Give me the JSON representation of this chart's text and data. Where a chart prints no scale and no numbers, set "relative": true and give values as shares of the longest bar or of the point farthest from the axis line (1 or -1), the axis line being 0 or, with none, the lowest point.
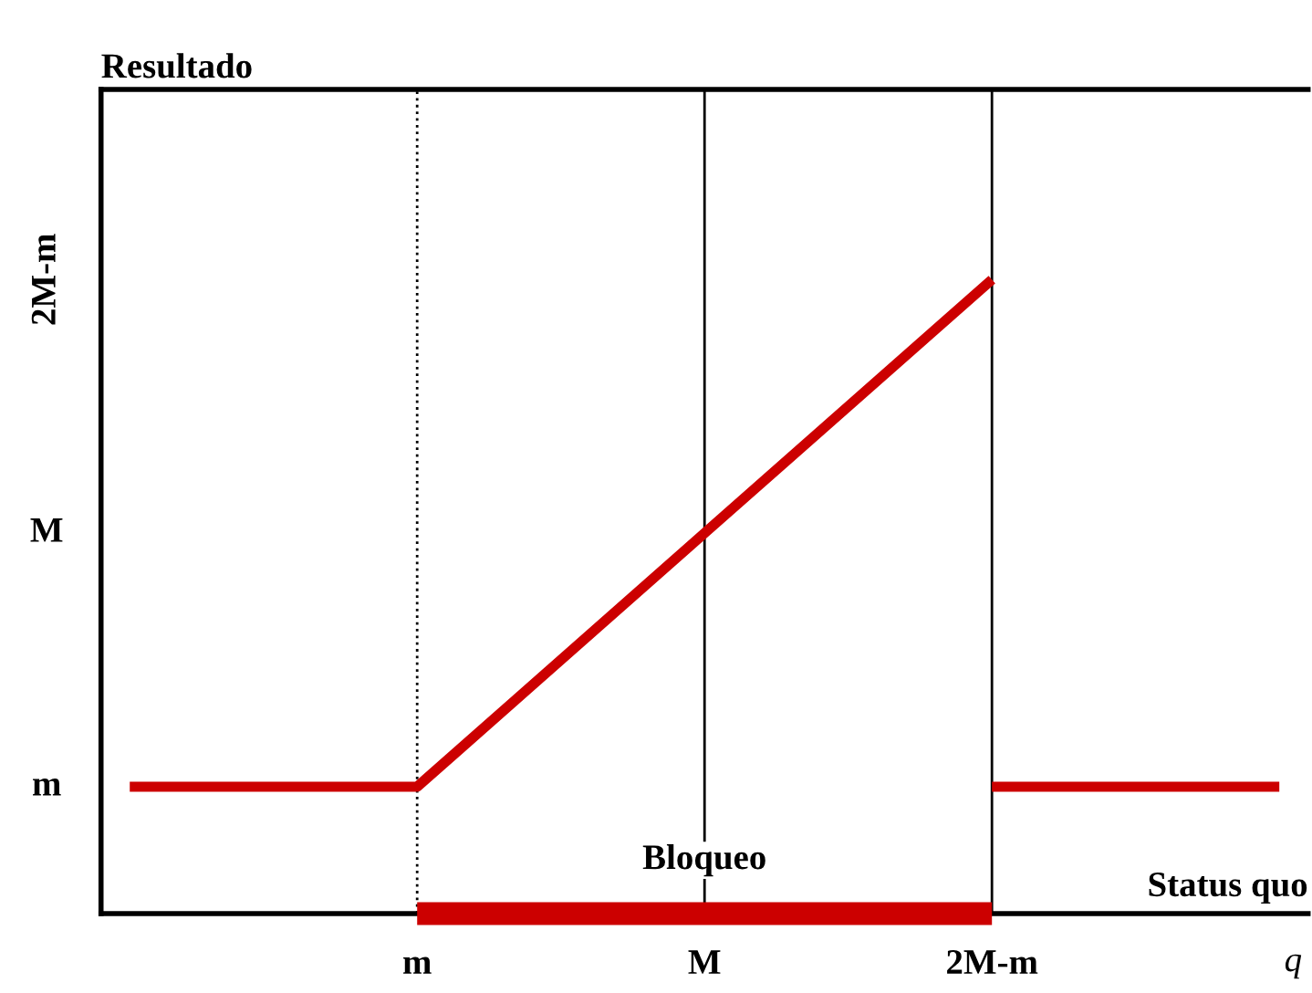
{
  "chart_data": {
    "type": "line",
    "xlabel": "Status quo",
    "relative": true,
    "categories": [
      null,
      "m",
      "M",
      "2M-m",
      null
    ],
    "series": [
      {
        "color": "#cc0000",
        "values": [
          0.2,
          0.2,
          0.6,
          1,
          null
        ]
      },
      {
        "color": "#cc0000",
        "values": [
          null,
          null,
          null,
          0.2,
          0.2
        ]
      },
      {
        "name": "Bloqueo",
        "color": "#cc0000",
        "values": [
          null,
          0,
          0,
          0,
          null
        ]
      }
    ],
    "ref_lines": [
      {
        "axis": "x",
        "value": "m",
        "line_style": "dotted",
        "color": "#000000"
      },
      {
        "axis": "x",
        "value": "M",
        "line_style": "solid",
        "color": "#000000"
      },
      {
        "axis": "x",
        "value": "2M-m",
        "line_style": "solid",
        "color": "#000000"
      }
    ],
    "annotations": [
      "Resultado",
      "m",
      "M",
      "2M-m",
      "q"
    ],
    "grid": false,
    "line_style": "solid"
  }
}
